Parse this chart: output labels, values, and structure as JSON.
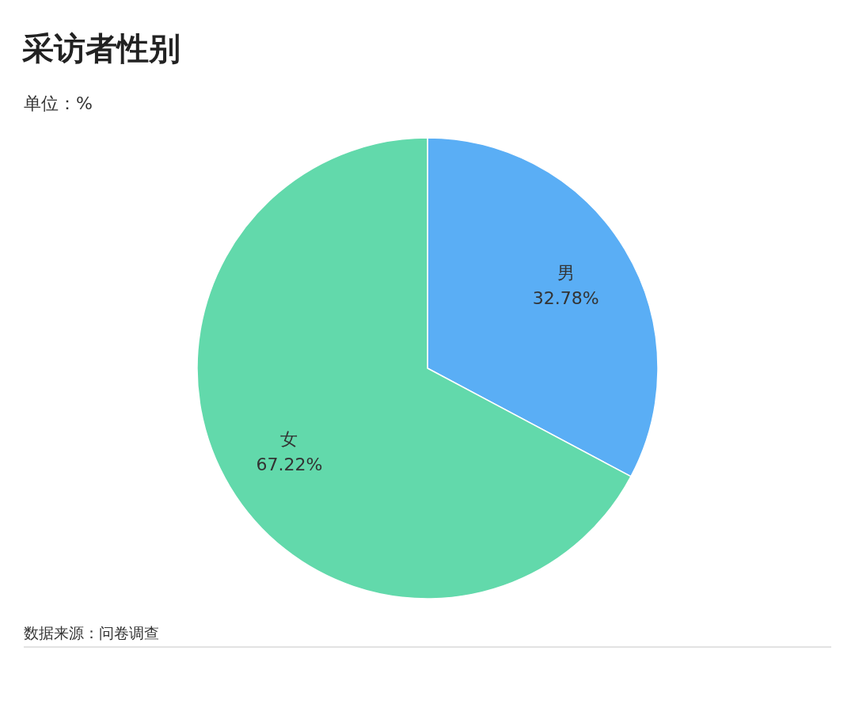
{
  "chart_data": {
    "type": "pie",
    "title": "采访者性别",
    "subtitle": "单位：%",
    "categories": [
      "男",
      "女"
    ],
    "values": [
      32.78,
      67.22
    ],
    "colors": [
      "#5aaef5",
      "#62d9ab"
    ],
    "value_labels": [
      "32.78%",
      "67.22%"
    ],
    "annotations": [
      "数据来源：问卷调查"
    ]
  }
}
